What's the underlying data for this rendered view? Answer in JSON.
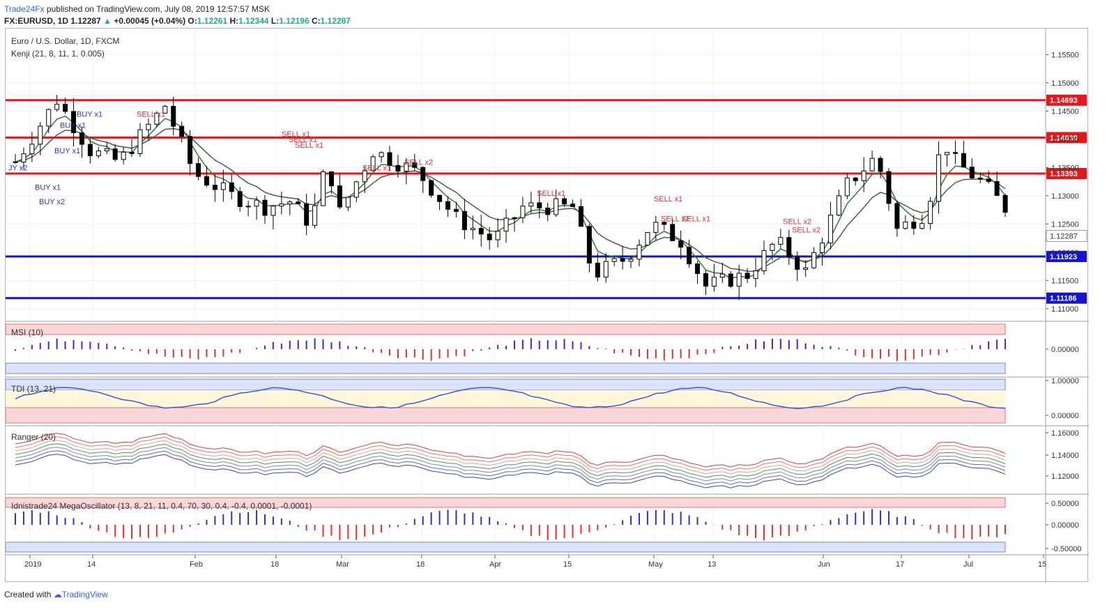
{
  "header": {
    "brand": "Trade24Fx",
    "published": " published on TradingView.com, July 08, 2019 12:57:57 MSK"
  },
  "quote": {
    "symbol": "FX:EURUSD, 1D",
    "last": "1.12287",
    "change": "+0.00045 (+0.04%)",
    "o_label": "O:",
    "o": "1.12261",
    "h_label": "H:",
    "h": "1.12344",
    "l_label": "L:",
    "l": "1.12196",
    "c_label": "C:",
    "c": "1.12287"
  },
  "colors": {
    "up_candle": "#ffffff",
    "down_candle": "#000000",
    "resistance": "#e8161a",
    "support": "#1414d2",
    "buy_signal": "#3030c0",
    "sell_signal": "#e03030",
    "kenji_fast": "#2e7d32",
    "kenji_slow": "#555555"
  },
  "panes": {
    "main_title": "Euro / U.S. Dollar, 1D, FXCM",
    "kenji_label": "Kenji (21, 8, 11, 1, 0.005)",
    "msi_label": "MSI (10)",
    "tdi_label": "TDI (13, 21)",
    "ranger_label": "Ranger (20)",
    "mega_label": "Idnistrade24 MegaOscillator (13, 8, 21, 11, 0.4, 70, 30, 0.4, -0.4, 0.0001, -0.0001)"
  },
  "chart_data": {
    "type": "candlestick",
    "title": "Euro / U.S. Dollar, 1D, FXCM",
    "x_labels": [
      "2019",
      "14",
      "Feb",
      "18",
      "Mar",
      "18",
      "Apr",
      "15",
      "May",
      "13",
      "Jun",
      "17",
      "Jul",
      "15"
    ],
    "price_ylim": [
      1.108,
      1.159
    ],
    "price_ticks": [
      "1.15500",
      "1.15000",
      "1.14500",
      "1.14000",
      "1.13500",
      "1.13000",
      "1.12500",
      "1.12000",
      "1.11500",
      "1.11000"
    ],
    "levels": [
      {
        "label": "1.14693",
        "value": 1.14693,
        "type": "resistance"
      },
      {
        "label": "1.14030",
        "value": 1.1403,
        "type": "resistance"
      },
      {
        "label": "1.13393",
        "value": 1.13393,
        "type": "resistance"
      },
      {
        "label": "1.11923",
        "value": 1.11923,
        "type": "support"
      },
      {
        "label": "1.11186",
        "value": 1.11186,
        "type": "support"
      }
    ],
    "last_price": {
      "label": "1.12287",
      "value": 1.12287
    },
    "signals": [
      {
        "text": "JY x2",
        "side": "buy"
      },
      {
        "text": "BUY x1",
        "side": "buy"
      },
      {
        "text": "BUY x2",
        "side": "buy"
      },
      {
        "text": "BUY x1",
        "side": "buy"
      },
      {
        "text": "BUY x1",
        "side": "buy"
      },
      {
        "text": "BUY x1",
        "side": "buy"
      },
      {
        "text": "SELL x1",
        "side": "sell"
      },
      {
        "text": "SELL x1",
        "side": "sell"
      },
      {
        "text": "SELL x1",
        "side": "sell"
      },
      {
        "text": "SELL x1",
        "side": "sell"
      },
      {
        "text": "SELL x1",
        "side": "sell"
      },
      {
        "text": "SELL x2",
        "side": "sell"
      },
      {
        "text": "SELL x1",
        "side": "sell"
      },
      {
        "text": "SELL x1",
        "side": "sell"
      },
      {
        "text": "SELL x1",
        "side": "sell"
      },
      {
        "text": "SELL x1",
        "side": "sell"
      },
      {
        "text": "SELL x2",
        "side": "sell"
      },
      {
        "text": "SELL x2",
        "side": "sell"
      }
    ],
    "msi_ticks": [
      "0.00000"
    ],
    "tdi_ticks": [
      "1.00000",
      "0.00000"
    ],
    "ranger_ticks": [
      "1.16000",
      "1.14000",
      "1.12000"
    ],
    "mega_ticks": [
      "0.50000",
      "0.00000",
      "-0.50000"
    ]
  },
  "footer": {
    "created_with": "Created with",
    "tv": "TradingView"
  }
}
